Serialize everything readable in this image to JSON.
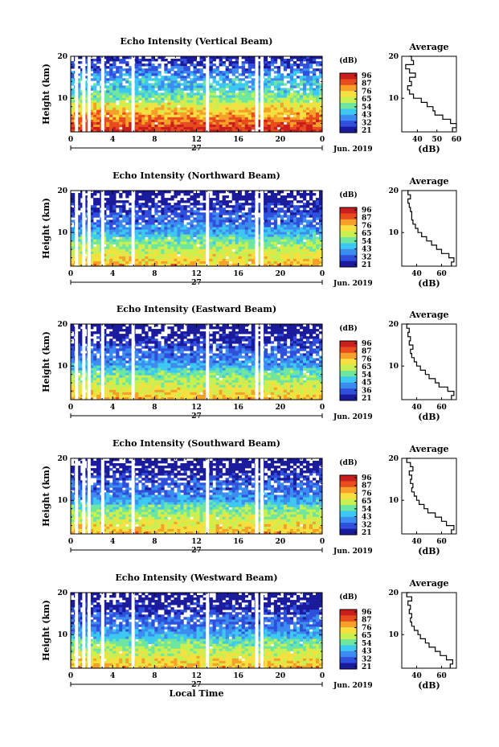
{
  "chart_data": [
    {
      "type": "heatmap",
      "title": "Echo Intensity (Vertical Beam)",
      "ylabel": "Height (km)",
      "xticks": [
        "0",
        "4",
        "8",
        "12",
        "16",
        "20",
        "0"
      ],
      "yticks": [
        "10",
        "20"
      ],
      "ylim": [
        2,
        20
      ],
      "date_day": "27",
      "date_month": "Jun. 2019",
      "colorbar_unit": "(dB)",
      "colorbar_ticks": [
        "96",
        "87",
        "76",
        "65",
        "54",
        "43",
        "32",
        "21"
      ],
      "gaps_hours": [
        0.4,
        1.1,
        1.6,
        2.9,
        5.8,
        12.9,
        17.6,
        18.1
      ],
      "profile": {
        "title": "Average",
        "xlabel": "(dB)",
        "xticks": [
          "40",
          "50",
          "60"
        ],
        "yticks": [
          "10",
          "20"
        ],
        "xlim": [
          32,
          60
        ],
        "height_km": [
          2,
          3,
          4,
          5,
          6,
          7,
          8,
          9,
          10,
          11,
          12,
          13,
          14,
          15,
          16,
          17,
          18,
          19,
          20
        ],
        "db": [
          58,
          60,
          57,
          53,
          49,
          48,
          45,
          42,
          38,
          36,
          35,
          37,
          36,
          39,
          36,
          34,
          38,
          37,
          36
        ]
      }
    },
    {
      "type": "heatmap",
      "title": "Echo Intensity (Northward Beam)",
      "ylabel": "Height (km)",
      "xticks": [
        "0",
        "4",
        "8",
        "12",
        "16",
        "20",
        "0"
      ],
      "yticks": [
        "10",
        "20"
      ],
      "ylim": [
        2,
        20
      ],
      "date_day": "27",
      "date_month": "Jun. 2019",
      "colorbar_unit": "(dB)",
      "colorbar_ticks": [
        "96",
        "87",
        "76",
        "65",
        "54",
        "43",
        "32",
        "21"
      ],
      "gaps_hours": [
        0.4,
        1.1,
        1.6,
        2.9,
        5.8,
        12.9,
        17.6,
        18.1
      ],
      "profile": {
        "title": "Average",
        "xlabel": "(dB)",
        "xticks": [
          "40",
          "60"
        ],
        "yticks": [
          "10",
          "20"
        ],
        "xlim": [
          28,
          72
        ],
        "height_km": [
          2,
          3,
          4,
          5,
          6,
          7,
          8,
          9,
          10,
          11,
          12,
          13,
          14,
          15,
          16,
          17,
          18,
          19,
          20
        ],
        "db": [
          68,
          70,
          66,
          60,
          56,
          52,
          48,
          44,
          41,
          39,
          37,
          36,
          36,
          35,
          34,
          33,
          35,
          33,
          34
        ]
      }
    },
    {
      "type": "heatmap",
      "title": "Echo Intensity (Eastward Beam)",
      "ylabel": "Height (km)",
      "xticks": [
        "0",
        "4",
        "8",
        "12",
        "16",
        "20",
        "0"
      ],
      "yticks": [
        "10",
        "20"
      ],
      "ylim": [
        2,
        20
      ],
      "date_day": "27",
      "date_month": "Jun. 2019",
      "colorbar_unit": "(dB)",
      "colorbar_ticks": [
        "96",
        "87",
        "76",
        "65",
        "54",
        "45",
        "36",
        "21"
      ],
      "gaps_hours": [
        0.4,
        1.1,
        1.6,
        2.9,
        5.8,
        12.9,
        17.6,
        18.1
      ],
      "profile": {
        "title": "Average",
        "xlabel": "(dB)",
        "xticks": [
          "40",
          "60"
        ],
        "yticks": [
          "10",
          "20"
        ],
        "xlim": [
          28,
          72
        ],
        "height_km": [
          2,
          3,
          4,
          5,
          6,
          7,
          8,
          9,
          10,
          11,
          12,
          13,
          14,
          15,
          16,
          17,
          18,
          19,
          20
        ],
        "db": [
          68,
          70,
          65,
          58,
          55,
          50,
          47,
          43,
          40,
          38,
          36,
          35,
          37,
          34,
          35,
          33,
          34,
          32,
          34
        ]
      }
    },
    {
      "type": "heatmap",
      "title": "Echo Intensity (Southward Beam)",
      "ylabel": "Height (km)",
      "xticks": [
        "0",
        "4",
        "8",
        "12",
        "16",
        "20",
        "0"
      ],
      "yticks": [
        "10",
        "20"
      ],
      "ylim": [
        2,
        20
      ],
      "date_day": "27",
      "date_month": "Jun. 2019",
      "colorbar_unit": "(dB)",
      "colorbar_ticks": [
        "96",
        "87",
        "76",
        "65",
        "54",
        "43",
        "32",
        "21"
      ],
      "gaps_hours": [
        0.4,
        1.1,
        1.6,
        2.9,
        5.8,
        12.9,
        17.6,
        18.1
      ],
      "profile": {
        "title": "Average",
        "xlabel": "(dB)",
        "xticks": [
          "40",
          "60"
        ],
        "yticks": [
          "10",
          "20"
        ],
        "xlim": [
          28,
          72
        ],
        "height_km": [
          2,
          3,
          4,
          5,
          6,
          7,
          8,
          9,
          10,
          11,
          12,
          13,
          14,
          15,
          16,
          17,
          18,
          19,
          20
        ],
        "db": [
          68,
          70,
          64,
          60,
          55,
          49,
          46,
          42,
          40,
          38,
          36,
          37,
          35,
          36,
          34,
          37,
          35,
          32,
          35
        ]
      }
    },
    {
      "type": "heatmap",
      "title": "Echo Intensity (Westward Beam)",
      "ylabel": "Height (km)",
      "xlabel": "Local Time",
      "xticks": [
        "0",
        "4",
        "8",
        "12",
        "16",
        "20",
        "0"
      ],
      "yticks": [
        "10",
        "20"
      ],
      "ylim": [
        2,
        20
      ],
      "date_day": "27",
      "date_month": "Jun. 2019",
      "colorbar_unit": "(dB)",
      "colorbar_ticks": [
        "96",
        "87",
        "76",
        "65",
        "54",
        "43",
        "32",
        "21"
      ],
      "gaps_hours": [
        0.4,
        1.1,
        1.6,
        2.9,
        5.8,
        12.9,
        17.6,
        18.1
      ],
      "profile": {
        "title": "Average",
        "xlabel": "(dB)",
        "xticks": [
          "40",
          "60"
        ],
        "yticks": [
          "10",
          "20"
        ],
        "xlim": [
          28,
          72
        ],
        "height_km": [
          2,
          3,
          4,
          5,
          6,
          7,
          8,
          9,
          10,
          11,
          12,
          13,
          14,
          15,
          16,
          17,
          18,
          19,
          20
        ],
        "db": [
          67,
          69,
          64,
          59,
          55,
          50,
          47,
          43,
          41,
          38,
          36,
          35,
          36,
          34,
          35,
          33,
          36,
          32,
          34
        ]
      }
    }
  ],
  "colors": {
    "scale": [
      "#1a1a9c",
      "#2f4fdc",
      "#3c8cf0",
      "#3cc8f0",
      "#6ee6a0",
      "#c8f050",
      "#f5e040",
      "#f5a028",
      "#e84c1e",
      "#c81e1e"
    ],
    "profile_line": "#000000"
  }
}
